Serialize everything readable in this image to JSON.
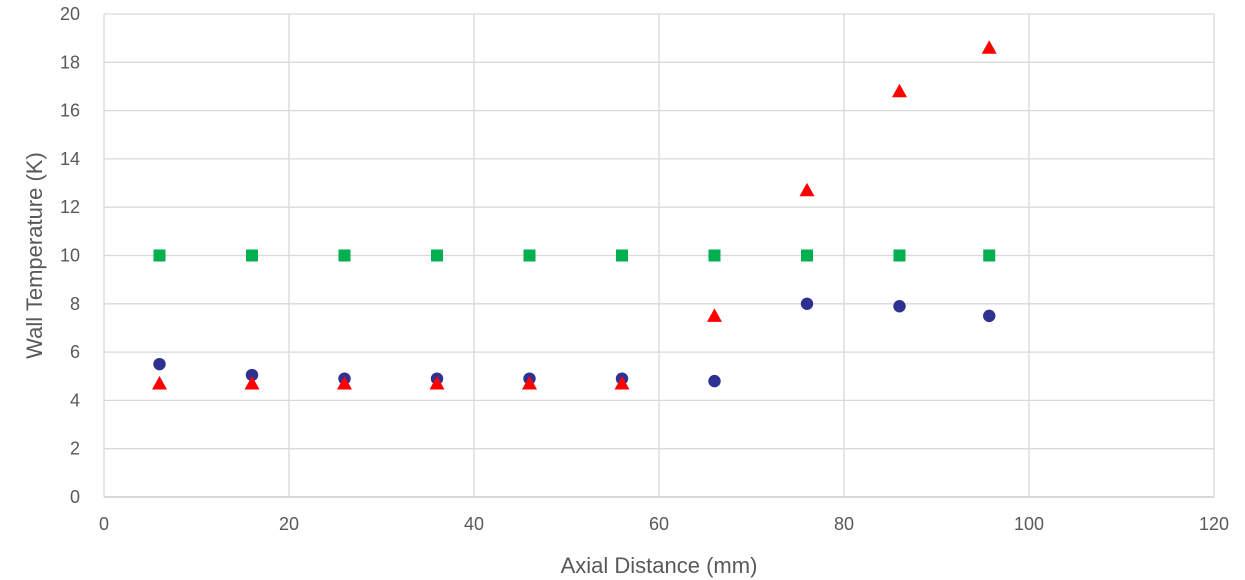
{
  "chart_data": {
    "type": "scatter",
    "xlabel": "Axial Distance (mm)",
    "ylabel": "Wall Temperature (K)",
    "xlim": [
      0,
      120
    ],
    "ylim": [
      0,
      20
    ],
    "xticks": [
      0,
      20,
      40,
      60,
      80,
      100,
      120
    ],
    "yticks": [
      0,
      2,
      4,
      6,
      8,
      10,
      12,
      14,
      16,
      18,
      20
    ],
    "grid": true,
    "legend": "none",
    "series": [
      {
        "marker": "square",
        "color": "#00b050",
        "x": [
          6,
          16,
          26,
          36,
          46,
          56,
          66,
          76,
          86,
          95.7
        ],
        "y": [
          10,
          10,
          10,
          10,
          10,
          10,
          10,
          10,
          10,
          10
        ]
      },
      {
        "marker": "circle",
        "color": "#2e3192",
        "x": [
          6,
          16,
          26,
          36,
          46,
          56,
          66,
          76,
          86,
          95.7
        ],
        "y": [
          5.5,
          5.05,
          4.9,
          4.9,
          4.9,
          4.9,
          4.8,
          8.0,
          7.9,
          7.5
        ]
      },
      {
        "marker": "triangle",
        "color": "#ff0000",
        "x": [
          6,
          16,
          26,
          36,
          46,
          56,
          66,
          76,
          86,
          95.7
        ],
        "y": [
          4.7,
          4.7,
          4.7,
          4.7,
          4.7,
          4.7,
          7.5,
          12.7,
          16.8,
          18.6
        ]
      }
    ]
  }
}
